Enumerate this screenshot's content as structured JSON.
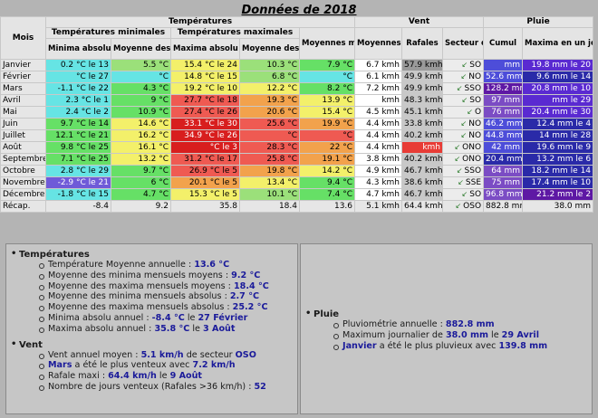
{
  "title": "Données de 2018",
  "headers": {
    "mois": "Mois",
    "temperatures": "Températures",
    "temp_min": "Températures minimales",
    "temp_max": "Températures maximales",
    "moyennes_mensuelle": "Moyennes mensuelle",
    "vent": "Vent",
    "pluie": "Pluie",
    "moyennes": "Moyennes",
    "rafales": "Rafales",
    "secteur_dominant": "Secteur dominant",
    "minima_absolu": "Minima absolu",
    "moyenne_des_mini": "Moyenne des mini",
    "maxima_absolu": "Maxima absolu",
    "moyenne_des_maxi": "Moyenne des maxi",
    "cumul": "Cumul",
    "maxima_en_un_jour": "Maxima en un jour"
  },
  "colors": {
    "cyan": "#66e4e4",
    "green": "#66e066",
    "lightgreen": "#9be07a",
    "yellow": "#f3f06a",
    "orange": "#f2a24c",
    "red": "#ef5a52",
    "darkred": "#d81e1e",
    "redder": "#e83c36",
    "windmed": "#9a9a9a",
    "windlight": "#c8c8c8",
    "windwhite": "#ffffff",
    "pv": "#4d4dd9",
    "pv2": "#7b4cc4",
    "pv3": "#5a2ad1",
    "pvb": "#2a2aa8",
    "pvd": "#5e18a4",
    "pvl": "#6f5ad8"
  },
  "rows": [
    {
      "month": "Janvier",
      "min_abs": "0.2 °C le 13",
      "min_abs_c": "cyan",
      "moy_min": "5.5 °C",
      "moy_min_c": "lightgreen",
      "max_abs": "15.4 °C le 24",
      "max_abs_c": "yellow",
      "moy_max": "10.3 °C",
      "moy_max_c": "lightgreen",
      "moy_mens": "7.9 °C",
      "moy_mens_c": "green",
      "vent": "6.7 kmh",
      "vent_c": "windwhite",
      "raf": "57.9 kmh",
      "raf_c": "windmed",
      "dom": "SO",
      "cumul": "mm",
      "cumul_c": "pv",
      "maxj": "19.8 mm le 20",
      "maxj_c": "pv3"
    },
    {
      "month": "Février",
      "min_abs": "°C le 27",
      "min_abs_c": "cyan",
      "moy_min": "°C",
      "moy_min_c": "cyan",
      "max_abs": "14.8 °C le 15",
      "max_abs_c": "yellow",
      "moy_max": "6.8 °C",
      "moy_max_c": "lightgreen",
      "moy_mens": "°C",
      "moy_mens_c": "cyan",
      "vent": "6.1 kmh",
      "vent_c": "windwhite",
      "raf": "49.9 kmh",
      "raf_c": "windlight",
      "dom": "NO",
      "cumul": "52.6 mm",
      "cumul_c": "pv",
      "maxj": "9.6 mm le 14",
      "maxj_c": "pvb"
    },
    {
      "month": "Mars",
      "min_abs": "-1.1 °C le 22",
      "min_abs_c": "cyan",
      "moy_min": "4.3 °C",
      "moy_min_c": "green",
      "max_abs": "19.2 °C le 10",
      "max_abs_c": "yellow",
      "moy_max": "12.2 °C",
      "moy_max_c": "yellow",
      "moy_mens": "8.2 °C",
      "moy_mens_c": "green",
      "vent": "7.2 kmh",
      "vent_c": "windwhite",
      "raf": "49.9 kmh",
      "raf_c": "windlight",
      "dom": "SSO",
      "cumul": "128.2 mm",
      "cumul_c": "pvd",
      "maxj": "20.8 mm le 10",
      "maxj_c": "pv3"
    },
    {
      "month": "Avril",
      "min_abs": "2.3 °C le 1",
      "min_abs_c": "cyan",
      "moy_min": "9 °C",
      "moy_min_c": "green",
      "max_abs": "27.7 °C le 18",
      "max_abs_c": "red",
      "moy_max": "19.3 °C",
      "moy_max_c": "orange",
      "moy_mens": "13.9 °C",
      "moy_mens_c": "yellow",
      "vent": "kmh",
      "vent_c": "windwhite",
      "raf": "48.3 kmh",
      "raf_c": "windlight",
      "dom": "SO",
      "cumul": "97 mm",
      "cumul_c": "pv2",
      "maxj": "mm le 29",
      "maxj_c": "pv3"
    },
    {
      "month": "Mai",
      "min_abs": "2.4 °C le 2",
      "min_abs_c": "cyan",
      "moy_min": "10.9 °C",
      "moy_min_c": "green",
      "max_abs": "27.4 °C le 26",
      "max_abs_c": "red",
      "moy_max": "20.6 °C",
      "moy_max_c": "orange",
      "moy_mens": "15.4 °C",
      "moy_mens_c": "yellow",
      "vent": "4.5 kmh",
      "vent_c": "windwhite",
      "raf": "45.1 kmh",
      "raf_c": "windlight",
      "dom": "O",
      "cumul": "76 mm",
      "cumul_c": "pv2",
      "maxj": "20.4 mm le 30",
      "maxj_c": "pv3"
    },
    {
      "month": "Juin",
      "min_abs": "9.7 °C le 14",
      "min_abs_c": "green",
      "moy_min": "14.6 °C",
      "moy_min_c": "yellow",
      "max_abs": "33.1 °C le 30",
      "max_abs_c": "darkred",
      "moy_max": "25.6 °C",
      "moy_max_c": "red",
      "moy_mens": "19.9 °C",
      "moy_mens_c": "orange",
      "vent": "4.4 kmh",
      "vent_c": "windwhite",
      "raf": "33.8 kmh",
      "raf_c": "windlight",
      "dom": "NO",
      "cumul": "46.2 mm",
      "cumul_c": "pv",
      "maxj": "12.4 mm le 4",
      "maxj_c": "pvb"
    },
    {
      "month": "Juillet",
      "min_abs": "12.1 °C le 21",
      "min_abs_c": "green",
      "moy_min": "16.2 °C",
      "moy_min_c": "yellow",
      "max_abs": "34.9 °C le 26",
      "max_abs_c": "darkred",
      "moy_max": "°C",
      "moy_max_c": "red",
      "moy_mens": "°C",
      "moy_mens_c": "red",
      "vent": "4.4 kmh",
      "vent_c": "windwhite",
      "raf": "40.2 kmh",
      "raf_c": "windlight",
      "dom": "NO",
      "cumul": "44.8 mm",
      "cumul_c": "pv",
      "maxj": "14 mm le 28",
      "maxj_c": "pvb"
    },
    {
      "month": "Août",
      "min_abs": "9.8 °C le 25",
      "min_abs_c": "green",
      "moy_min": "16.1 °C",
      "moy_min_c": "yellow",
      "max_abs": "°C le 3",
      "max_abs_c": "darkred",
      "moy_max": "28.3 °C",
      "moy_max_c": "red",
      "moy_mens": "22 °C",
      "moy_mens_c": "orange",
      "vent": "4.4 kmh",
      "vent_c": "windwhite",
      "raf": "kmh",
      "raf_c": "redder",
      "dom": "ONO",
      "cumul": "42 mm",
      "cumul_c": "pv",
      "maxj": "19.6 mm le 9",
      "maxj_c": "pvb"
    },
    {
      "month": "Septembre",
      "min_abs": "7.1 °C le 25",
      "min_abs_c": "green",
      "moy_min": "13.2 °C",
      "moy_min_c": "yellow",
      "max_abs": "31.2 °C le 17",
      "max_abs_c": "red",
      "moy_max": "25.8 °C",
      "moy_max_c": "red",
      "moy_mens": "19.1 °C",
      "moy_mens_c": "orange",
      "vent": "3.8 kmh",
      "vent_c": "windwhite",
      "raf": "40.2 kmh",
      "raf_c": "windlight",
      "dom": "ONO",
      "cumul": "20.4 mm",
      "cumul_c": "pvb",
      "maxj": "13.2 mm le 6",
      "maxj_c": "pvb"
    },
    {
      "month": "Octobre",
      "min_abs": "2.8 °C le 29",
      "min_abs_c": "cyan",
      "moy_min": "9.7 °C",
      "moy_min_c": "green",
      "max_abs": "26.9 °C le 5",
      "max_abs_c": "red",
      "moy_max": "19.8 °C",
      "moy_max_c": "orange",
      "moy_mens": "14.2 °C",
      "moy_mens_c": "yellow",
      "vent": "4.9 kmh",
      "vent_c": "windwhite",
      "raf": "46.7 kmh",
      "raf_c": "windlight",
      "dom": "SSO",
      "cumul": "64 mm",
      "cumul_c": "pv2",
      "maxj": "18.2 mm le 14",
      "maxj_c": "pvb"
    },
    {
      "month": "Novembre",
      "min_abs": "-2.9 °C le 21",
      "min_abs_c": "pvl",
      "moy_min": "6 °C",
      "moy_min_c": "green",
      "max_abs": "20.1 °C le 5",
      "max_abs_c": "orange",
      "moy_max": "13.4 °C",
      "moy_max_c": "yellow",
      "moy_mens": "9.4 °C",
      "moy_mens_c": "green",
      "vent": "4.3 kmh",
      "vent_c": "windwhite",
      "raf": "38.6 kmh",
      "raf_c": "windlight",
      "dom": "SSE",
      "cumul": "75 mm",
      "cumul_c": "pv2",
      "maxj": "17.4 mm le 10",
      "maxj_c": "pvb"
    },
    {
      "month": "Décembre",
      "min_abs": "-1.8 °C le 15",
      "min_abs_c": "cyan",
      "moy_min": "4.7 °C",
      "moy_min_c": "green",
      "max_abs": "15.3 °C le 5",
      "max_abs_c": "yellow",
      "moy_max": "10.1 °C",
      "moy_max_c": "lightgreen",
      "moy_mens": "7.4 °C",
      "moy_mens_c": "green",
      "vent": "4.7 kmh",
      "vent_c": "windwhite",
      "raf": "46.7 kmh",
      "raf_c": "windlight",
      "dom": "SO",
      "cumul": "96.8 mm",
      "cumul_c": "pv2",
      "maxj": "21.2 mm le 2",
      "maxj_c": "pvd"
    }
  ],
  "recap": {
    "label": "Récap.",
    "min_abs": "-8.4",
    "moy_min": "9.2",
    "max_abs": "35.8",
    "moy_max": "18.4",
    "moy_mens": "13.6",
    "vent": "5.1 kmh",
    "raf": "64.4 kmh",
    "dom": "OSO",
    "cumul": "882.8 mm",
    "maxj": "38.0 mm"
  },
  "summary_left": {
    "temp_title": "Températures",
    "temp_items": [
      {
        "pre": "Température Moyenne annuelle :",
        "v": "13.6 °C"
      },
      {
        "pre": "Moyenne des minima mensuels moyens :",
        "v": "9.2 °C"
      },
      {
        "pre": "Moyenne des maxima mensuels moyens :",
        "v": "18.4 °C"
      },
      {
        "pre": "Moyenne des minima mensuels absolus :",
        "v": "2.7 °C"
      },
      {
        "pre": "Moyenne des maxima mensuels absolus :",
        "v": "25.2 °C"
      },
      {
        "pre": "Minima absolu annuel :",
        "v": "-8.4 °C",
        "mid": "le",
        "v2": "27 Février"
      },
      {
        "pre": "Maxima absolu annuel :",
        "v": "35.8 °C",
        "mid": "le",
        "v2": "3 Août"
      }
    ],
    "vent_title": "Vent",
    "vent_items": [
      {
        "pre": "Vent annuel moyen :",
        "v": "5.1 km/h",
        "mid": "de secteur",
        "v2": "OSO"
      },
      {
        "pre0": "Mars",
        "pre": "a été le plus venteux avec",
        "v": "7.2 km/h"
      },
      {
        "pre": "Rafale maxi :",
        "v": "64.4 km/h",
        "mid": "le",
        "v2": "9 Août"
      },
      {
        "pre": "Nombre de jours venteux (Rafales >36 km/h) :",
        "v": "52"
      }
    ]
  },
  "summary_right": {
    "pluie_title": "Pluie",
    "pluie_items": [
      {
        "pre": "Pluviométrie annuelle :",
        "v": "882.8 mm"
      },
      {
        "pre": "Maximum journalier de",
        "v": "38.0 mm",
        "mid": "le",
        "v2": "29 Avril"
      },
      {
        "pre0": "Janvier",
        "pre": "a été le plus pluvieux avec",
        "v": "139.8 mm"
      }
    ]
  }
}
